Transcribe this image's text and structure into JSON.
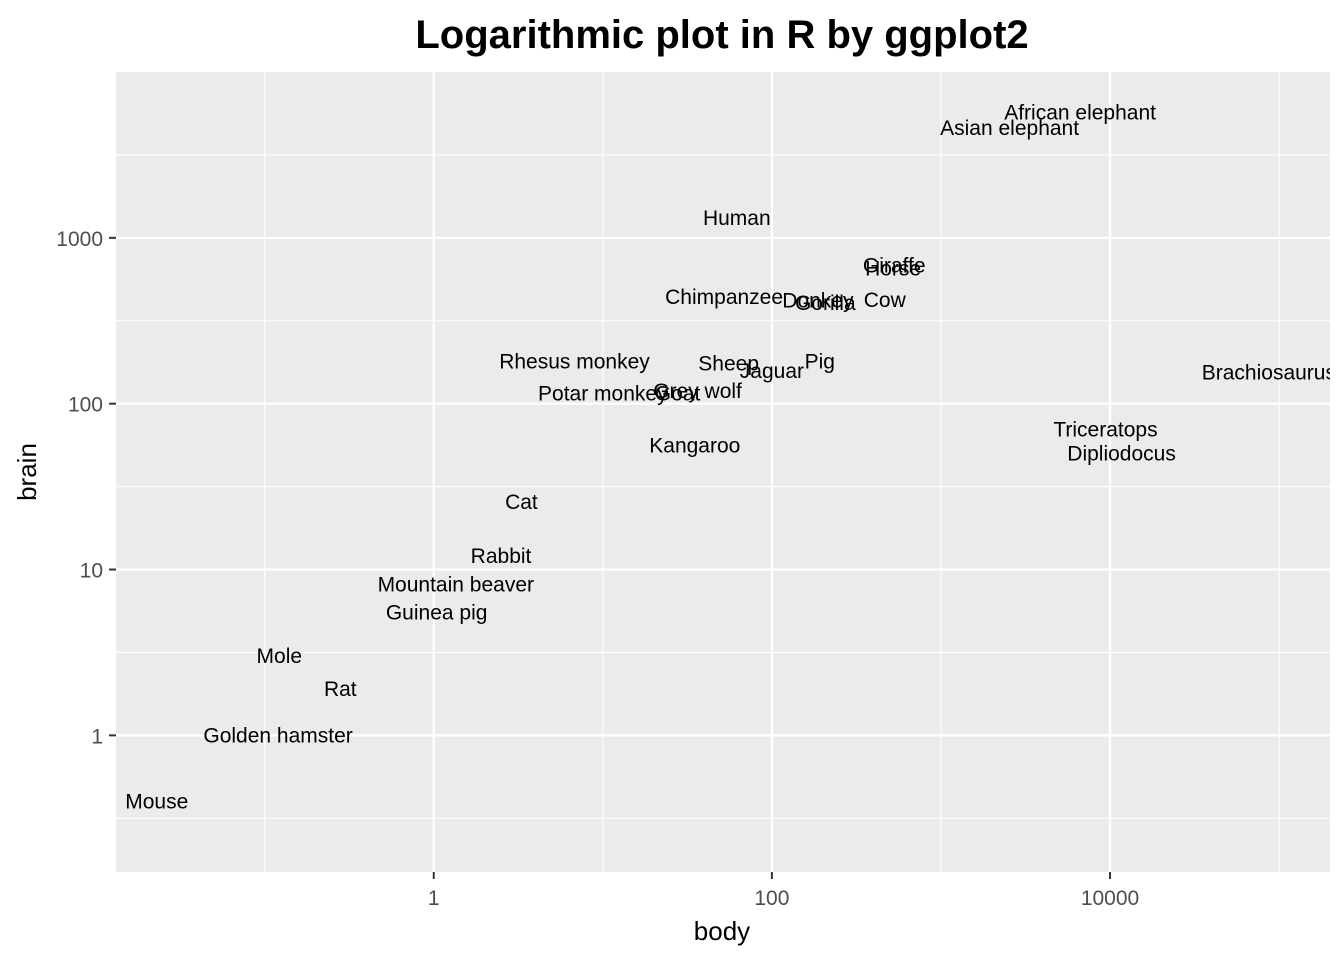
{
  "chart_data": {
    "type": "scatter",
    "title": "Logarithmic plot in R by ggplot2",
    "xlabel": "body",
    "ylabel": "brain",
    "x_scale": "log10",
    "y_scale": "log10",
    "xlim": [
      0.0132,
      200000
    ],
    "ylim": [
      0.15,
      10000
    ],
    "x_ticks": [
      {
        "value": 1,
        "label": "1"
      },
      {
        "value": 100,
        "label": "100"
      },
      {
        "value": 10000,
        "label": "10000"
      }
    ],
    "y_ticks": [
      {
        "value": 1,
        "label": "1"
      },
      {
        "value": 10,
        "label": "10"
      },
      {
        "value": 100,
        "label": "100"
      },
      {
        "value": 1000,
        "label": "1000"
      }
    ],
    "grid": true,
    "marker": "text-label",
    "points": [
      {
        "label": "Mountain beaver",
        "x": 1.35,
        "y": 8.1
      },
      {
        "label": "Cow",
        "x": 465,
        "y": 423
      },
      {
        "label": "Grey wolf",
        "x": 36.33,
        "y": 119.5
      },
      {
        "label": "Goat",
        "x": 27.66,
        "y": 115
      },
      {
        "label": "Guinea pig",
        "x": 1.04,
        "y": 5.5
      },
      {
        "label": "Dipliodocus",
        "x": 11700,
        "y": 50
      },
      {
        "label": "Asian elephant",
        "x": 2547,
        "y": 4603
      },
      {
        "label": "Donkey",
        "x": 187.1,
        "y": 419
      },
      {
        "label": "Horse",
        "x": 521,
        "y": 655
      },
      {
        "label": "Potar monkey",
        "x": 10,
        "y": 115
      },
      {
        "label": "Cat",
        "x": 3.3,
        "y": 25.6
      },
      {
        "label": "Giraffe",
        "x": 529,
        "y": 680
      },
      {
        "label": "Gorilla",
        "x": 207,
        "y": 406
      },
      {
        "label": "Human",
        "x": 62,
        "y": 1320
      },
      {
        "label": "African elephant",
        "x": 6654,
        "y": 5712
      },
      {
        "label": "Triceratops",
        "x": 9400,
        "y": 70
      },
      {
        "label": "Rhesus monkey",
        "x": 6.8,
        "y": 179
      },
      {
        "label": "Kangaroo",
        "x": 35,
        "y": 56
      },
      {
        "label": "Golden hamster",
        "x": 0.12,
        "y": 1
      },
      {
        "label": "Mouse",
        "x": 0.023,
        "y": 0.4
      },
      {
        "label": "Rabbit",
        "x": 2.5,
        "y": 12.1
      },
      {
        "label": "Sheep",
        "x": 55.5,
        "y": 175
      },
      {
        "label": "Jaguar",
        "x": 100,
        "y": 157
      },
      {
        "label": "Chimpanzee",
        "x": 52.16,
        "y": 440
      },
      {
        "label": "Rat",
        "x": 0.28,
        "y": 1.9
      },
      {
        "label": "Brachiosaurus",
        "x": 87000,
        "y": 154.5
      },
      {
        "label": "Mole",
        "x": 0.122,
        "y": 3
      },
      {
        "label": "Pig",
        "x": 192,
        "y": 180
      }
    ]
  }
}
